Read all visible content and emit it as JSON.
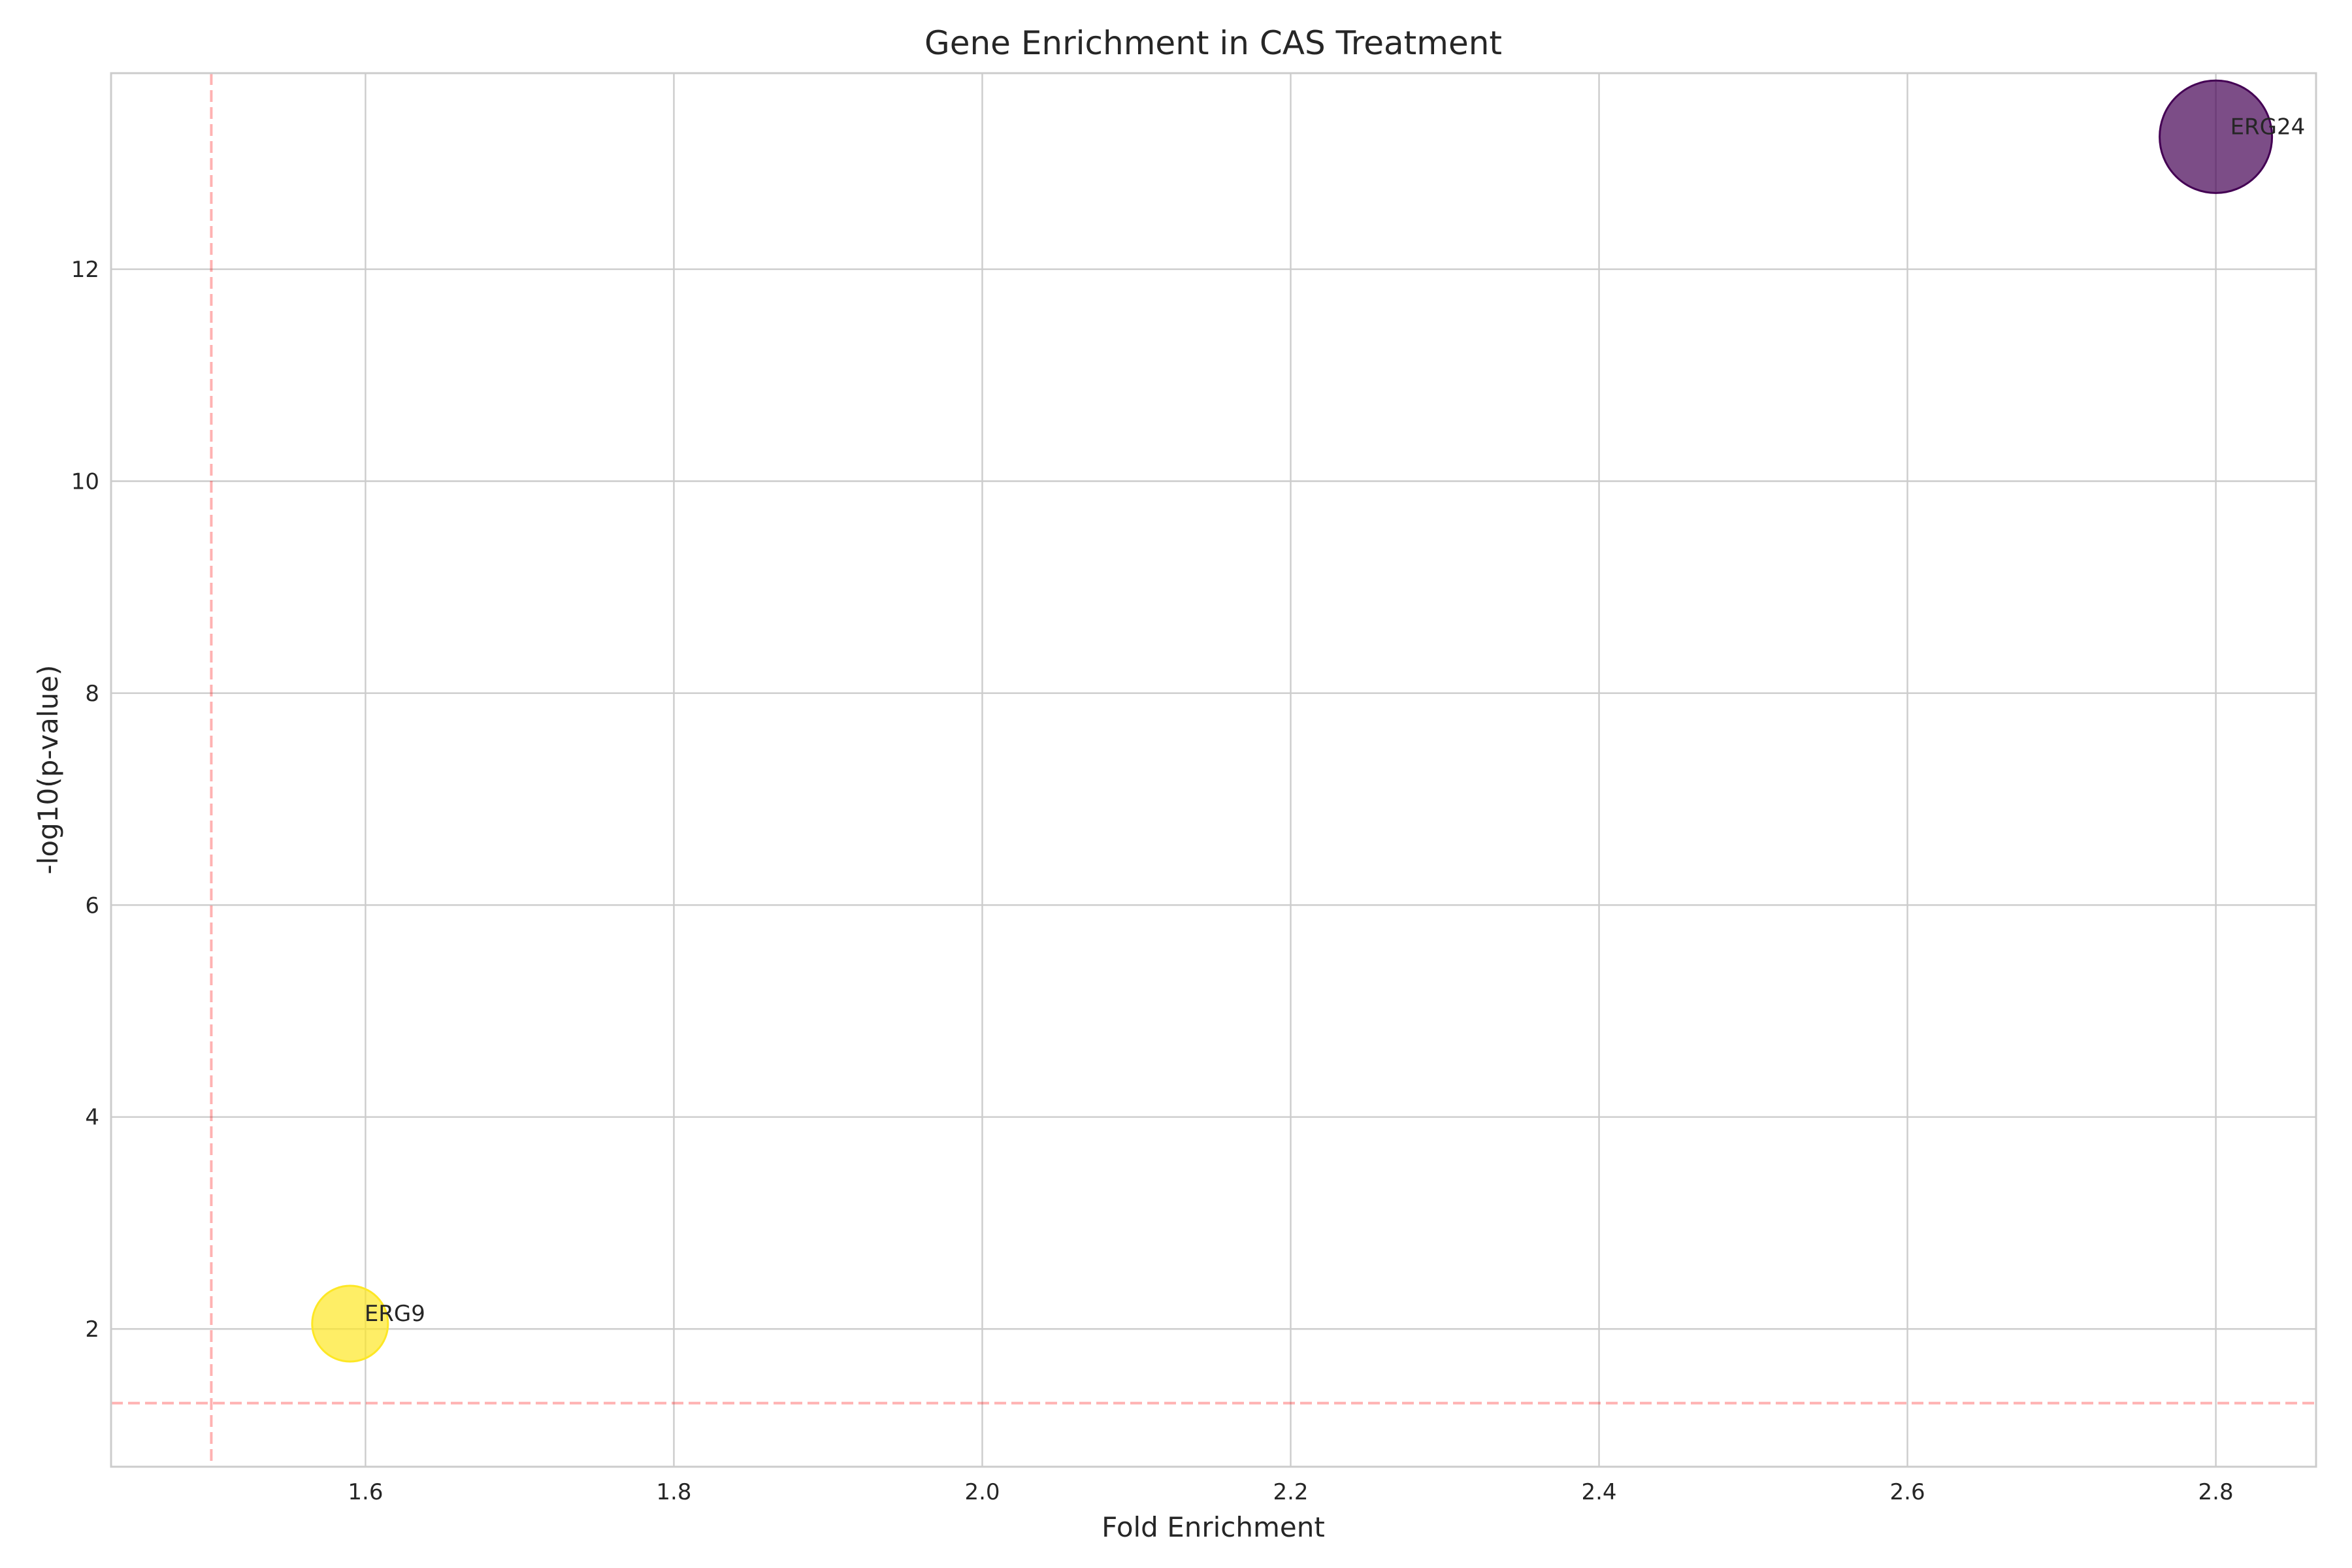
{
  "chart_data": {
    "type": "scatter",
    "title": "Gene Enrichment in CAS Treatment",
    "xlabel": "Fold Enrichment",
    "ylabel": "-log10(p-value)",
    "xlim": [
      1.435,
      2.865
    ],
    "ylim": [
      0.7,
      13.85
    ],
    "xticks": [
      1.6,
      1.8,
      2.0,
      2.2,
      2.4,
      2.6,
      2.8
    ],
    "xtick_labels": [
      "1.6",
      "1.8",
      "2.0",
      "2.2",
      "2.4",
      "2.6",
      "2.8"
    ],
    "yticks": [
      2,
      4,
      6,
      8,
      10,
      12
    ],
    "ytick_labels": [
      "2",
      "4",
      "6",
      "8",
      "10",
      "12"
    ],
    "grid": true,
    "reference_lines": {
      "x": 1.5,
      "y": 1.3,
      "color": "#ff0000"
    },
    "points": [
      {
        "label": "ERG24",
        "x": 2.8,
        "y": 13.25,
        "size": 2.2,
        "color": "#440154"
      },
      {
        "label": "ERG9",
        "x": 1.59,
        "y": 2.05,
        "size": 1.0,
        "color": "#fde725"
      }
    ]
  }
}
